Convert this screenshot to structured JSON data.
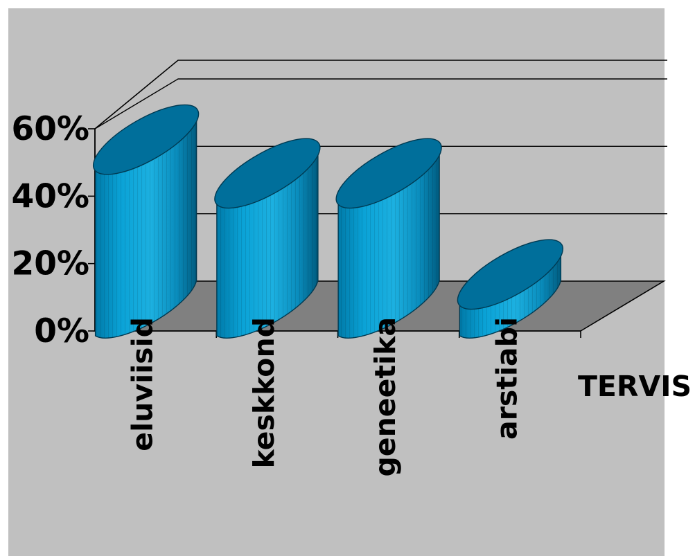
{
  "chart_data": {
    "type": "bar",
    "bar_shape": "cylinder",
    "three_d": true,
    "categories": [
      "eluviisid",
      "keskkond",
      "geneetika",
      "arstiabi"
    ],
    "series": [
      {
        "name": "TERVIS",
        "values": [
          50,
          40,
          40,
          10
        ]
      }
    ],
    "yticks": [
      "0%",
      "20%",
      "40%",
      "60%"
    ],
    "ylim": [
      0,
      60
    ],
    "grid": true,
    "legend": "none",
    "colors": {
      "chart_area": "#c0c0c0",
      "floor": "#808080",
      "cylinder_front": "#0099cc",
      "cylinder_light": "#1cb0e0",
      "cylinder_dark": "#005c80",
      "cylinder_top": "#006f9b"
    }
  }
}
